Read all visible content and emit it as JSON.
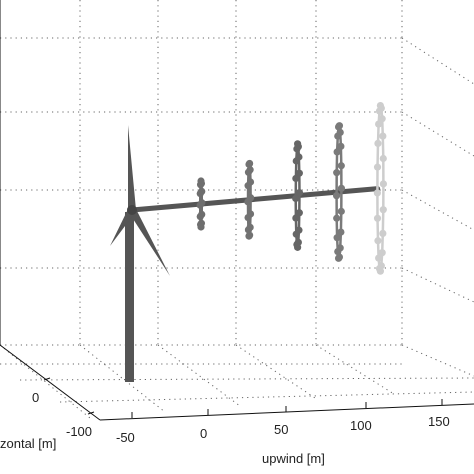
{
  "chart_data": {
    "type": "scatter",
    "title": "",
    "xlabel": "upwind [m]",
    "ylabel": "horizontal [m]",
    "ylabel_visible": "zontal [m]",
    "x_ticks": [
      "-50",
      "0",
      "50",
      "100",
      "150"
    ],
    "y_ticks": [
      "-100",
      "0"
    ],
    "grid": true,
    "rings": [
      {
        "upwind": 50,
        "radius": 20,
        "points": 12,
        "shade": "#6e6e6e"
      },
      {
        "upwind": 85,
        "radius": 32,
        "points": 14,
        "shade": "#727272"
      },
      {
        "upwind": 120,
        "radius": 45,
        "points": 16,
        "shade": "#666666"
      },
      {
        "upwind": 150,
        "radius": 58,
        "points": 18,
        "shade": "#7a7a7a"
      },
      {
        "upwind": 180,
        "radius": 72,
        "points": 20,
        "shade": "#cdcdcd"
      }
    ],
    "turbine": {
      "hub_upwind": 0,
      "hub_height": 100,
      "rotor_radius": 45,
      "shaft_end_upwind": 178,
      "color": "#555555"
    }
  }
}
